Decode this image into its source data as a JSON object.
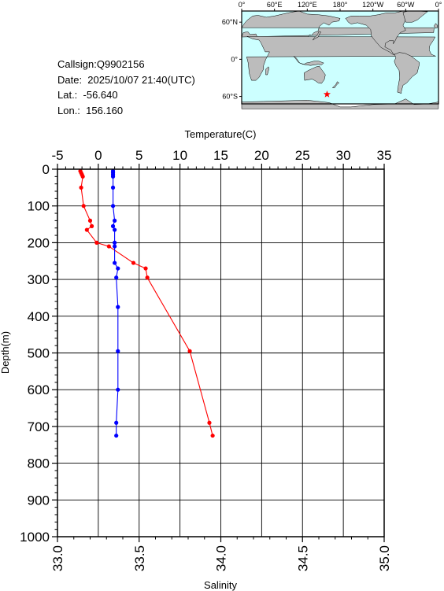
{
  "station": {
    "callsign_line": "Callsign:Q9902156",
    "date_line": "Date:  2025/10/07 21:40(UTC)",
    "lat_line": "Lat.:  -56.640",
    "lon_line": "Lon.:  156.160"
  },
  "map": {
    "lon_ticks": [
      "0°",
      "60°E",
      "120°E",
      "180°",
      "120°W",
      "60°W",
      "0°"
    ],
    "lat_ticks": [
      "60°N",
      "0°",
      "60°S"
    ],
    "land_color": "#bcbcbc",
    "ocean_color": "#ccffff",
    "marker": {
      "lon": 156.16,
      "lat": -56.64,
      "color": "#ff0000",
      "symbol": "star"
    }
  },
  "chart_data": {
    "type": "line",
    "title": "",
    "temperature_axis": {
      "label": "Temperature(C)",
      "range": [
        -5,
        35
      ],
      "ticks": [
        "-5",
        "0",
        "5",
        "10",
        "15",
        "20",
        "25",
        "30",
        "35"
      ],
      "position": "top"
    },
    "salinity_axis": {
      "label": "Salinity",
      "range": [
        33.0,
        35.0
      ],
      "ticks": [
        "33.0",
        "33.5",
        "34.0",
        "34.5",
        "35.0"
      ],
      "position": "bottom"
    },
    "depth_axis": {
      "label": "Depth(m)",
      "range": [
        0,
        1000
      ],
      "inverted": true,
      "ticks": [
        "0",
        "100",
        "200",
        "300",
        "400",
        "500",
        "600",
        "700",
        "800",
        "900",
        "1000"
      ]
    },
    "grid": true,
    "series": [
      {
        "color": "#ff0000",
        "axis": "temperature",
        "depth": [
          5,
          10,
          15,
          20,
          50,
          100,
          140,
          155,
          165,
          200,
          210,
          255,
          270,
          295,
          495,
          690,
          725
        ],
        "values": [
          -2.2,
          -2.1,
          -2.0,
          -1.9,
          -2.1,
          -1.8,
          -1.0,
          -0.8,
          -1.4,
          -0.2,
          1.3,
          4.3,
          5.8,
          6.0,
          11.2,
          13.6,
          14.0
        ]
      },
      {
        "color": "#0000ff",
        "axis": "salinity",
        "depth": [
          5,
          10,
          15,
          20,
          50,
          100,
          140,
          155,
          165,
          200,
          210,
          255,
          270,
          295,
          375,
          495,
          600,
          690,
          725
        ],
        "values": [
          33.34,
          33.34,
          33.34,
          33.34,
          33.34,
          33.34,
          33.35,
          33.34,
          33.35,
          33.35,
          33.35,
          33.35,
          33.37,
          33.36,
          33.37,
          33.37,
          33.37,
          33.36,
          33.36
        ]
      }
    ]
  }
}
